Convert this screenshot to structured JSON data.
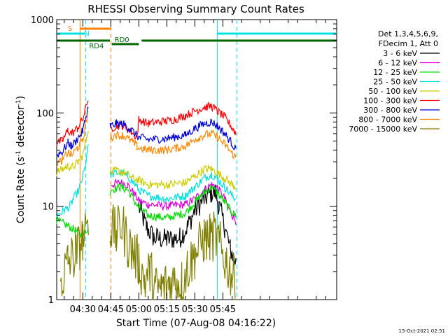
{
  "chart_data": {
    "type": "line",
    "title": "RHESSI Observing Summary Count Rates",
    "xlabel": "Start Time (07-Aug-08 04:16:22)",
    "ylabel_main": "Count Rate (s",
    "ylabel_sup1": "-1",
    "ylabel_mid": " detector",
    "ylabel_sup2": "-1",
    "ylabel_end": ")",
    "yscale": "log",
    "ylim": [
      1,
      1000
    ],
    "xlim_minutes": [
      256,
      406
    ],
    "xticks": [
      {
        "m": 270,
        "label": "04:30"
      },
      {
        "m": 285,
        "label": "04:45"
      },
      {
        "m": 300,
        "label": "05:00"
      },
      {
        "m": 315,
        "label": "05:15"
      },
      {
        "m": 330,
        "label": "05:30"
      },
      {
        "m": 345,
        "label": "05:45"
      }
    ],
    "yticks": [
      {
        "v": 1,
        "label": "1"
      },
      {
        "v": 10,
        "label": "10"
      },
      {
        "v": 100,
        "label": "100"
      },
      {
        "v": 1000,
        "label": "1000"
      }
    ],
    "legend_header": [
      "Det 1,3,4,5,6,9,",
      "FDecim 1, Att 0"
    ],
    "legend_position": "right",
    "footer_date": "15-Oct-2021 02:51",
    "series": [
      {
        "name": "3 - 6 keV",
        "color": "#000000",
        "points": [
          [
            300,
            10
          ],
          [
            304,
            6
          ],
          [
            308,
            4.6
          ],
          [
            315,
            4.4
          ],
          [
            322,
            4.6
          ],
          [
            326,
            6
          ],
          [
            330,
            9
          ],
          [
            335,
            12
          ],
          [
            339,
            14
          ],
          [
            341,
            14
          ],
          [
            343,
            10
          ],
          [
            346,
            6
          ],
          [
            349,
            3.5
          ],
          [
            352,
            2.5
          ]
        ]
      },
      {
        "name": "6 - 12 keV",
        "color": "#e000e0",
        "points": [
          [
            285,
            17
          ],
          [
            290,
            18
          ],
          [
            294,
            17
          ],
          [
            297,
            14
          ],
          [
            300,
            11.5
          ],
          [
            305,
            10.5
          ],
          [
            315,
            10
          ],
          [
            325,
            10.5
          ],
          [
            330,
            12
          ],
          [
            335,
            15
          ],
          [
            339,
            17
          ],
          [
            342,
            16
          ],
          [
            346,
            12
          ],
          [
            350,
            8
          ],
          [
            352,
            7
          ]
        ]
      },
      {
        "name": "12 - 25 keV",
        "color": "#00dd00",
        "points": [
          [
            256,
            7
          ],
          [
            262,
            6.2
          ],
          [
            266,
            5.5
          ],
          [
            270,
            4.8
          ],
          [
            285,
            15
          ],
          [
            290,
            16
          ],
          [
            294,
            15
          ],
          [
            297,
            12
          ],
          [
            300,
            9.5
          ],
          [
            305,
            8
          ],
          [
            315,
            7.5
          ],
          [
            325,
            8.5
          ],
          [
            330,
            11
          ],
          [
            335,
            14
          ],
          [
            339,
            16
          ],
          [
            342,
            14
          ],
          [
            346,
            11
          ],
          [
            350,
            8.5
          ],
          [
            352,
            8
          ]
        ]
      },
      {
        "name": "25 - 50 keV",
        "color": "#00e0e0",
        "points": [
          [
            256,
            8
          ],
          [
            260,
            9
          ],
          [
            263,
            10
          ],
          [
            265,
            12
          ],
          [
            268,
            15
          ],
          [
            271,
            25
          ],
          [
            273,
            45
          ],
          [
            285,
            22
          ],
          [
            290,
            23
          ],
          [
            294,
            21
          ],
          [
            297,
            18
          ],
          [
            300,
            15
          ],
          [
            305,
            13
          ],
          [
            315,
            12
          ],
          [
            325,
            13
          ],
          [
            330,
            16
          ],
          [
            335,
            20
          ],
          [
            339,
            22
          ],
          [
            342,
            20
          ],
          [
            346,
            16
          ],
          [
            350,
            13
          ],
          [
            352,
            12
          ]
        ]
      },
      {
        "name": "50 - 100 keV",
        "color": "#cccc00",
        "points": [
          [
            256,
            23
          ],
          [
            259,
            25
          ],
          [
            262,
            27
          ],
          [
            264,
            26
          ],
          [
            267,
            29
          ],
          [
            270,
            35
          ],
          [
            273,
            70
          ],
          [
            285,
            23
          ],
          [
            288,
            24
          ],
          [
            292,
            23
          ],
          [
            297,
            20
          ],
          [
            300,
            19
          ],
          [
            305,
            17
          ],
          [
            315,
            17
          ],
          [
            325,
            18
          ],
          [
            330,
            21
          ],
          [
            335,
            25
          ],
          [
            339,
            25
          ],
          [
            342,
            23
          ],
          [
            346,
            20
          ],
          [
            350,
            17
          ],
          [
            352,
            16
          ]
        ]
      },
      {
        "name": "100 - 300 keV",
        "color": "#ff0000",
        "points": [
          [
            256,
            48
          ],
          [
            259,
            50
          ],
          [
            262,
            65
          ],
          [
            264,
            60
          ],
          [
            267,
            68
          ],
          [
            270,
            85
          ],
          [
            273,
            145
          ],
          [
            285,
            68
          ],
          [
            288,
            73
          ],
          [
            292,
            73
          ],
          [
            296,
            62
          ],
          [
            299,
            55
          ],
          [
            300,
            85
          ],
          [
            305,
            77
          ],
          [
            310,
            80
          ],
          [
            315,
            82
          ],
          [
            320,
            86
          ],
          [
            325,
            94
          ],
          [
            330,
            105
          ],
          [
            335,
            115
          ],
          [
            339,
            118
          ],
          [
            342,
            105
          ],
          [
            346,
            90
          ],
          [
            350,
            70
          ],
          [
            352,
            60
          ]
        ]
      },
      {
        "name": "300 - 800 keV",
        "color": "#0000dd",
        "points": [
          [
            256,
            36
          ],
          [
            259,
            38
          ],
          [
            262,
            48
          ],
          [
            264,
            44
          ],
          [
            267,
            52
          ],
          [
            270,
            64
          ],
          [
            273,
            120
          ],
          [
            285,
            72
          ],
          [
            288,
            77
          ],
          [
            292,
            76
          ],
          [
            296,
            66
          ],
          [
            299,
            57
          ],
          [
            300,
            55
          ],
          [
            305,
            52
          ],
          [
            315,
            53
          ],
          [
            325,
            58
          ],
          [
            330,
            68
          ],
          [
            335,
            77
          ],
          [
            339,
            80
          ],
          [
            342,
            73
          ],
          [
            346,
            60
          ],
          [
            350,
            47
          ],
          [
            352,
            40
          ]
        ]
      },
      {
        "name": "800 - 7000 keV",
        "color": "#ff8800",
        "points": [
          [
            256,
            29
          ],
          [
            259,
            31
          ],
          [
            262,
            38
          ],
          [
            264,
            35
          ],
          [
            267,
            42
          ],
          [
            270,
            50
          ],
          [
            273,
            110
          ],
          [
            285,
            55
          ],
          [
            288,
            58
          ],
          [
            292,
            57
          ],
          [
            296,
            50
          ],
          [
            299,
            44
          ],
          [
            300,
            42
          ],
          [
            305,
            40
          ],
          [
            315,
            40
          ],
          [
            325,
            44
          ],
          [
            330,
            52
          ],
          [
            335,
            58
          ],
          [
            339,
            60
          ],
          [
            342,
            55
          ],
          [
            346,
            46
          ],
          [
            350,
            37
          ],
          [
            352,
            33
          ]
        ]
      },
      {
        "name": "7000 - 15000 keV",
        "color": "#808000",
        "points": [
          [
            258,
            1.5
          ],
          [
            262,
            2.5
          ],
          [
            266,
            3
          ],
          [
            270,
            4.5
          ],
          [
            273,
            4.8
          ],
          [
            285,
            6
          ],
          [
            288,
            5
          ],
          [
            291,
            6.5
          ],
          [
            294,
            4
          ],
          [
            297,
            3.2
          ],
          [
            300,
            2.5
          ],
          [
            303,
            1.6
          ],
          [
            306,
            2
          ],
          [
            309,
            1.3
          ],
          [
            312,
            1.3
          ],
          [
            316,
            1.5
          ],
          [
            320,
            1.6
          ],
          [
            323,
            1.5
          ],
          [
            326,
            2.2
          ],
          [
            330,
            3
          ],
          [
            335,
            4.5
          ],
          [
            338,
            4.6
          ],
          [
            341,
            4.8
          ],
          [
            344,
            3.5
          ],
          [
            347,
            2.5
          ],
          [
            350,
            1.8
          ],
          [
            352,
            1.5
          ]
        ]
      }
    ],
    "attenuator_bar": {
      "label": "S",
      "color": "#ff8000",
      "segments": [
        [
          268.5,
          285
        ]
      ]
    },
    "night_bar": {
      "label": "N",
      "color": "#00e0e0",
      "segments": [
        [
          256,
          271
        ],
        [
          342,
          406
        ]
      ]
    },
    "decimation_bar": {
      "color": "#006600",
      "labels": [
        "RD4",
        "RD0"
      ],
      "segments": [
        [
          256,
          284.5
        ],
        [
          285.5,
          300
        ],
        [
          301.5,
          406
        ]
      ]
    },
    "vertical_markers": [
      {
        "m": 268.5,
        "color": "#ff8000",
        "dash": false
      },
      {
        "m": 271.5,
        "color": "#00e0e0",
        "dash": true
      },
      {
        "m": 285,
        "color": "#ff8000",
        "dash": true
      },
      {
        "m": 342,
        "color": "#00e0e0",
        "dash": false
      },
      {
        "m": 352.5,
        "color": "#00e0e0",
        "dash": true
      }
    ],
    "time_end_minute": 352.5
  }
}
